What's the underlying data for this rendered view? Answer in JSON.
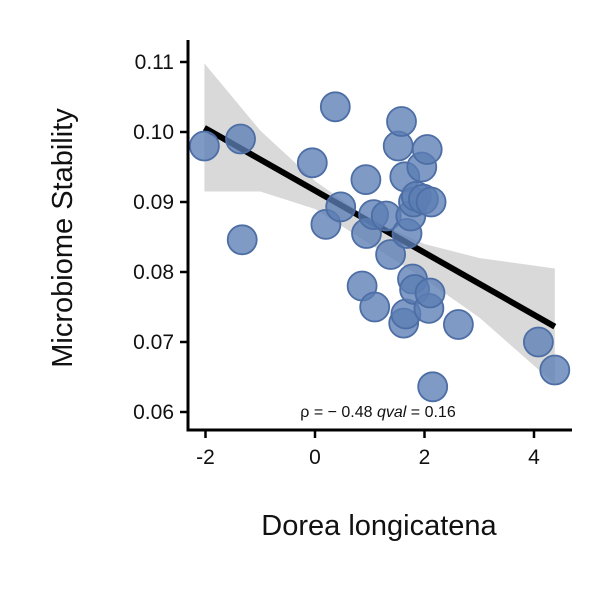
{
  "chart_data": {
    "type": "scatter",
    "xlabel": "Dorea longicatena",
    "ylabel": "Microbiome Stability",
    "xlim": [
      -2.3,
      4.8
    ],
    "ylim": [
      0.0577,
      0.1122
    ],
    "xticks": [
      -2,
      0,
      2,
      4
    ],
    "xtick_labels": [
      "-2",
      "0",
      "2",
      "4"
    ],
    "yticks": [
      0.06,
      0.07,
      0.08,
      0.09,
      0.1,
      0.11
    ],
    "ytick_labels": [
      "0.06",
      "0.07",
      "0.08",
      "0.09",
      "0.10",
      "0.11"
    ],
    "grid": false,
    "points": [
      {
        "x": -2.02,
        "y": 0.098
      },
      {
        "x": -1.36,
        "y": 0.099
      },
      {
        "x": -1.33,
        "y": 0.0846
      },
      {
        "x": -0.05,
        "y": 0.0956
      },
      {
        "x": 0.2,
        "y": 0.0868
      },
      {
        "x": 0.37,
        "y": 0.1036
      },
      {
        "x": 0.47,
        "y": 0.0893
      },
      {
        "x": 0.86,
        "y": 0.078
      },
      {
        "x": 0.93,
        "y": 0.0932
      },
      {
        "x": 0.94,
        "y": 0.0855
      },
      {
        "x": 1.07,
        "y": 0.0882
      },
      {
        "x": 1.09,
        "y": 0.075
      },
      {
        "x": 1.3,
        "y": 0.088
      },
      {
        "x": 1.38,
        "y": 0.0825
      },
      {
        "x": 1.52,
        "y": 0.098
      },
      {
        "x": 1.58,
        "y": 0.1015
      },
      {
        "x": 1.62,
        "y": 0.0727
      },
      {
        "x": 1.64,
        "y": 0.0936
      },
      {
        "x": 1.66,
        "y": 0.074
      },
      {
        "x": 1.68,
        "y": 0.0855
      },
      {
        "x": 1.75,
        "y": 0.088
      },
      {
        "x": 1.78,
        "y": 0.079
      },
      {
        "x": 1.8,
        "y": 0.09
      },
      {
        "x": 1.82,
        "y": 0.0775
      },
      {
        "x": 1.85,
        "y": 0.0908
      },
      {
        "x": 1.95,
        "y": 0.095
      },
      {
        "x": 1.98,
        "y": 0.0904
      },
      {
        "x": 2.05,
        "y": 0.0975
      },
      {
        "x": 2.08,
        "y": 0.0748
      },
      {
        "x": 2.1,
        "y": 0.077
      },
      {
        "x": 2.12,
        "y": 0.09
      },
      {
        "x": 2.15,
        "y": 0.0636
      },
      {
        "x": 2.62,
        "y": 0.0725
      },
      {
        "x": 4.08,
        "y": 0.07
      },
      {
        "x": 4.38,
        "y": 0.066
      }
    ],
    "point_color": "#5b7db3",
    "regression_line": {
      "x": [
        -2.02,
        4.38
      ],
      "y": [
        0.1006,
        0.0722
      ],
      "color": "#000000"
    },
    "confidence_band": {
      "color": "#d9d9d9",
      "x": [
        -2.02,
        -1.0,
        0.0,
        1.0,
        2.0,
        3.0,
        4.38
      ],
      "upper": [
        0.1098,
        0.1002,
        0.093,
        0.0875,
        0.084,
        0.082,
        0.0805
      ],
      "lower": [
        0.0915,
        0.0915,
        0.089,
        0.084,
        0.079,
        0.0735,
        0.064
      ]
    },
    "annotation": {
      "rho_symbol": "ρ",
      "rho_text": " = − 0.48 ",
      "qval_symbol": "qval",
      "qval_text": " = 0.16"
    }
  }
}
